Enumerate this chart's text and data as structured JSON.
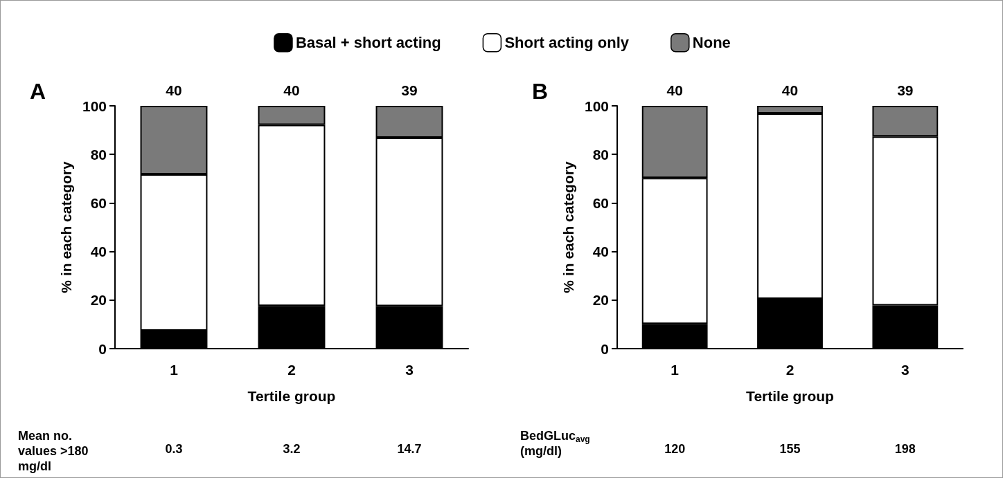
{
  "chart_data": [
    {
      "type": "bar",
      "title": "A",
      "xlabel": "Tertile group",
      "ylabel": "% in each category",
      "categories": [
        "1",
        "2",
        "3"
      ],
      "stacked": true,
      "legend": "top",
      "series": [
        {
          "name": "Basal + short acting",
          "color": "#000000",
          "values": [
            7.4,
            17.6,
            17.5
          ]
        },
        {
          "name": "Short acting only",
          "color": "#ffffff",
          "values": [
            64.4,
            74.6,
            69.4
          ]
        },
        {
          "name": "None",
          "color": "#7a7a7a",
          "values": [
            28.2,
            7.8,
            13.1
          ]
        }
      ],
      "ylim": [
        0,
        100
      ],
      "yticks": [
        0,
        20,
        40,
        60,
        80,
        100
      ],
      "grid": false,
      "annotations": [
        {
          "text": "40",
          "x": "1",
          "y": 100
        },
        {
          "text": "40",
          "x": "2",
          "y": 100
        },
        {
          "text": "39",
          "x": "3",
          "y": 100
        },
        "Mean no. values >180 mg/dl",
        "0.3",
        "3.2",
        "14.7"
      ]
    },
    {
      "type": "bar",
      "title": "B",
      "xlabel": "Tertile group",
      "ylabel": "% in each category",
      "categories": [
        "1",
        "2",
        "3"
      ],
      "stacked": true,
      "legend": false,
      "series": [
        {
          "color": "#000000",
          "values": [
            10.2,
            20.5,
            17.8
          ]
        },
        {
          "color": "#ffffff",
          "values": [
            60.1,
            76.4,
            69.6
          ]
        },
        {
          "color": "#7a7a7a",
          "values": [
            29.7,
            3.1,
            12.6
          ]
        }
      ],
      "ylim": [
        0,
        100
      ],
      "yticks": [
        0,
        20,
        40,
        60,
        80,
        100
      ],
      "grid": false,
      "annotations": [
        {
          "text": "40",
          "x": "1",
          "y": 100
        },
        {
          "text": "40",
          "x": "2",
          "y": 100
        },
        {
          "text": "39",
          "x": "3",
          "y": 100
        },
        "BedGLuc$_{avg}$ (mg/dl)",
        "120",
        "155",
        "198"
      ]
    }
  ]
}
